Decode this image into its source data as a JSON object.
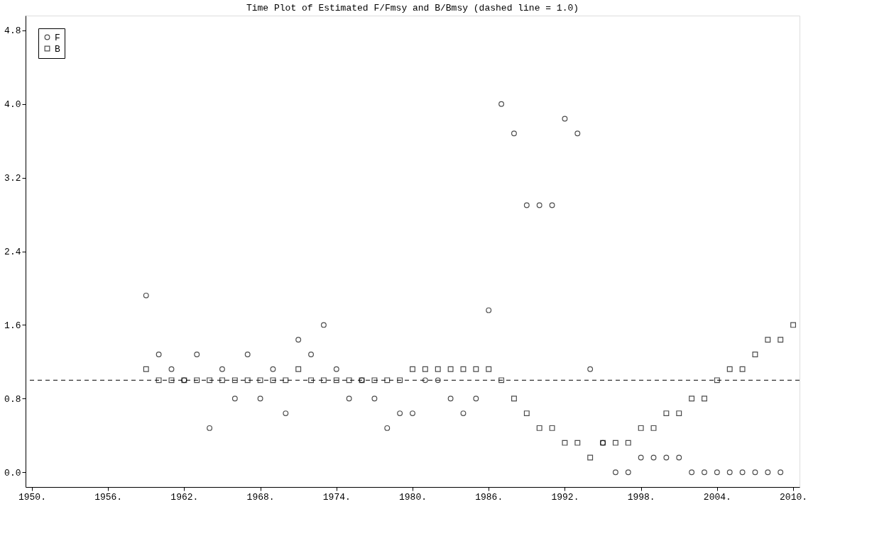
{
  "chart_data": {
    "type": "scatter",
    "title": "Time Plot of Estimated F/Fmsy and B/Bmsy (dashed line = 1.0)",
    "x": [
      1959,
      1960,
      1961,
      1962,
      1963,
      1964,
      1965,
      1966,
      1967,
      1968,
      1969,
      1970,
      1971,
      1972,
      1973,
      1974,
      1975,
      1976,
      1977,
      1978,
      1979,
      1980,
      1981,
      1982,
      1983,
      1984,
      1985,
      1986,
      1987,
      1988,
      1989,
      1990,
      1991,
      1992,
      1993,
      1994,
      1995,
      1996,
      1997,
      1998,
      1999,
      2000,
      2001,
      2002,
      2003,
      2004,
      2005,
      2006,
      2007,
      2008,
      2009,
      2010
    ],
    "series": [
      {
        "name": "F",
        "marker": "circle",
        "color": "#000000",
        "values": [
          1.92,
          1.28,
          1.12,
          1.0,
          1.28,
          0.48,
          1.12,
          0.8,
          1.28,
          0.8,
          1.12,
          0.64,
          1.44,
          1.28,
          1.6,
          1.12,
          0.8,
          1.0,
          0.8,
          0.48,
          0.64,
          0.64,
          1.0,
          1.0,
          0.8,
          0.64,
          0.8,
          1.76,
          4.0,
          3.68,
          2.9,
          2.9,
          2.9,
          3.84,
          3.68,
          1.12,
          0.32,
          0.0,
          0.0,
          0.16,
          0.16,
          0.16,
          0.16,
          0.0,
          0.0,
          0.0,
          0.0,
          0.0,
          0.0,
          0.0,
          0.0,
          null
        ]
      },
      {
        "name": "B",
        "marker": "square",
        "color": "#000000",
        "values": [
          1.12,
          1.0,
          1.0,
          1.0,
          1.0,
          1.0,
          1.0,
          1.0,
          1.0,
          1.0,
          1.0,
          1.0,
          1.12,
          1.0,
          1.0,
          1.0,
          1.0,
          1.0,
          1.0,
          1.0,
          1.0,
          1.12,
          1.12,
          1.12,
          1.12,
          1.12,
          1.12,
          1.12,
          1.0,
          0.8,
          0.64,
          0.48,
          0.48,
          0.32,
          0.32,
          0.16,
          0.32,
          0.32,
          0.32,
          0.48,
          0.48,
          0.64,
          0.64,
          0.8,
          0.8,
          1.0,
          1.12,
          1.12,
          1.28,
          1.44,
          1.44,
          1.6
        ]
      }
    ],
    "xlim": [
      1949.5,
      2010.5
    ],
    "xticks": [
      {
        "value": 1950,
        "label": "1950."
      },
      {
        "value": 1956,
        "label": "1956."
      },
      {
        "value": 1962,
        "label": "1962."
      },
      {
        "value": 1968,
        "label": "1968."
      },
      {
        "value": 1974,
        "label": "1974."
      },
      {
        "value": 1980,
        "label": "1980."
      },
      {
        "value": 1986,
        "label": "1986."
      },
      {
        "value": 1992,
        "label": "1992."
      },
      {
        "value": 1998,
        "label": "1998."
      },
      {
        "value": 2004,
        "label": "2004."
      },
      {
        "value": 2010,
        "label": "2010."
      }
    ],
    "ylim": [
      -0.16,
      4.96
    ],
    "yticks": [
      {
        "value": 0,
        "label": "0.0"
      },
      {
        "value": 0.8,
        "label": "0.8"
      },
      {
        "value": 1.6,
        "label": "1.6"
      },
      {
        "value": 2.4,
        "label": "2.4"
      },
      {
        "value": 3.2,
        "label": "3.2"
      },
      {
        "value": 4.0,
        "label": "4.0"
      },
      {
        "value": 4.8,
        "label": "4.8"
      }
    ],
    "ref_lines": [
      {
        "axis": "y",
        "value": 1.0,
        "label": null,
        "line_style": "dashed",
        "color": "#000000"
      }
    ],
    "grid": false,
    "legend": "top left"
  }
}
